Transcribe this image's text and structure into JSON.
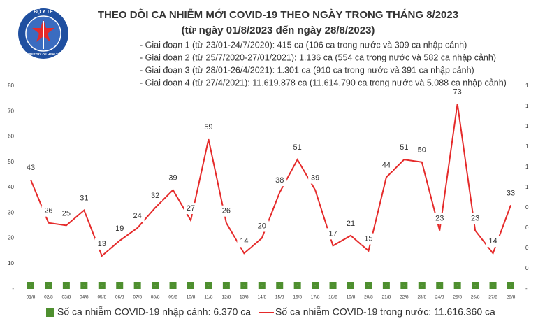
{
  "logo": {
    "top": "BỘ Y TẾ",
    "bottom": "MINISTRY OF HEALTH"
  },
  "chart_data": {
    "type": "combo",
    "title": "THEO DÕI CA NHIỄM MỚI COVID-19 THEO NGÀY TRONG THÁNG 8/2023",
    "subtitle": "(từ ngày 01/8/2023 đến ngày 28/8/2023)",
    "annotations": [
      "- Giai đoạn 1 (từ 23/01-24/7/2020): 415 ca (106 ca trong nước và 309 ca nhập cảnh)",
      "- Giai đoạn 2 (từ 25/7/2020-27/01/2021): 1.136 ca (554 ca trong nước và 582 ca nhập cảnh)",
      "- Giai đoạn 3 (từ 28/01-26/4/2021): 1.301 ca (910 ca trong nước và 391 ca nhập cảnh)",
      "- Giai đoạn 4 (từ 27/4/2021): 11.619.878 ca (11.614.790 ca trong nước và 5.088 ca nhập cảnh)"
    ],
    "categories": [
      "01/8",
      "02/8",
      "03/8",
      "04/8",
      "05/8",
      "06/8",
      "07/8",
      "08/8",
      "09/8",
      "10/8",
      "11/8",
      "12/8",
      "13/8",
      "14/8",
      "15/8",
      "16/8",
      "17/8",
      "18/8",
      "19/8",
      "20/8",
      "21/8",
      "22/8",
      "23/8",
      "24/8",
      "25/8",
      "26/8",
      "27/8",
      "28/8"
    ],
    "series": [
      {
        "name": "Số ca nhiễm COVID-19 nhập cảnh: 6.370 ca",
        "type": "bar",
        "axis": "y2",
        "color": "#4e8f2f",
        "values": [
          0,
          0,
          0,
          0,
          0,
          0,
          0,
          0,
          0,
          0,
          0,
          0,
          0,
          0,
          0,
          0,
          0,
          0,
          0,
          0,
          0,
          0,
          0,
          0,
          0,
          0,
          0,
          0
        ],
        "value_labels": [
          "-",
          "-",
          "-",
          "-",
          "-",
          "-",
          "-",
          "-",
          "-",
          "-",
          "-",
          "-",
          "-",
          "-",
          "-",
          "-",
          "-",
          "-",
          "-",
          "-",
          "-",
          "-",
          "-",
          "-",
          "-",
          "-",
          "-",
          "-"
        ]
      },
      {
        "name": "Số ca nhiễm COVID-19 trong nước: 11.616.360 ca",
        "type": "line",
        "color": "#e52a2a",
        "values": [
          43,
          26,
          25,
          31,
          13,
          19,
          24,
          32,
          39,
          27,
          59,
          26,
          14,
          20,
          38,
          51,
          39,
          17,
          21,
          15,
          44,
          51,
          50,
          23,
          73,
          23,
          14,
          33
        ]
      }
    ],
    "ylim": [
      0,
      80
    ],
    "yticks": [
      {
        "value": 0,
        "label": "-"
      },
      10,
      20,
      30,
      40,
      50,
      60,
      70,
      80
    ],
    "y2lim": [
      0,
      1
    ],
    "y2ticks": [
      {
        "value": 0,
        "label": "-"
      },
      {
        "value": 0.1,
        "label": "0"
      },
      {
        "value": 0.2,
        "label": "0"
      },
      {
        "value": 0.3,
        "label": "0"
      },
      {
        "value": 0.4,
        "label": "0"
      },
      {
        "value": 0.5,
        "label": "1"
      },
      {
        "value": 0.6,
        "label": "1"
      },
      {
        "value": 0.7,
        "label": "1"
      },
      {
        "value": 0.8,
        "label": "1"
      },
      {
        "value": 0.9,
        "label": "1"
      },
      {
        "value": 1,
        "label": "1"
      }
    ]
  }
}
